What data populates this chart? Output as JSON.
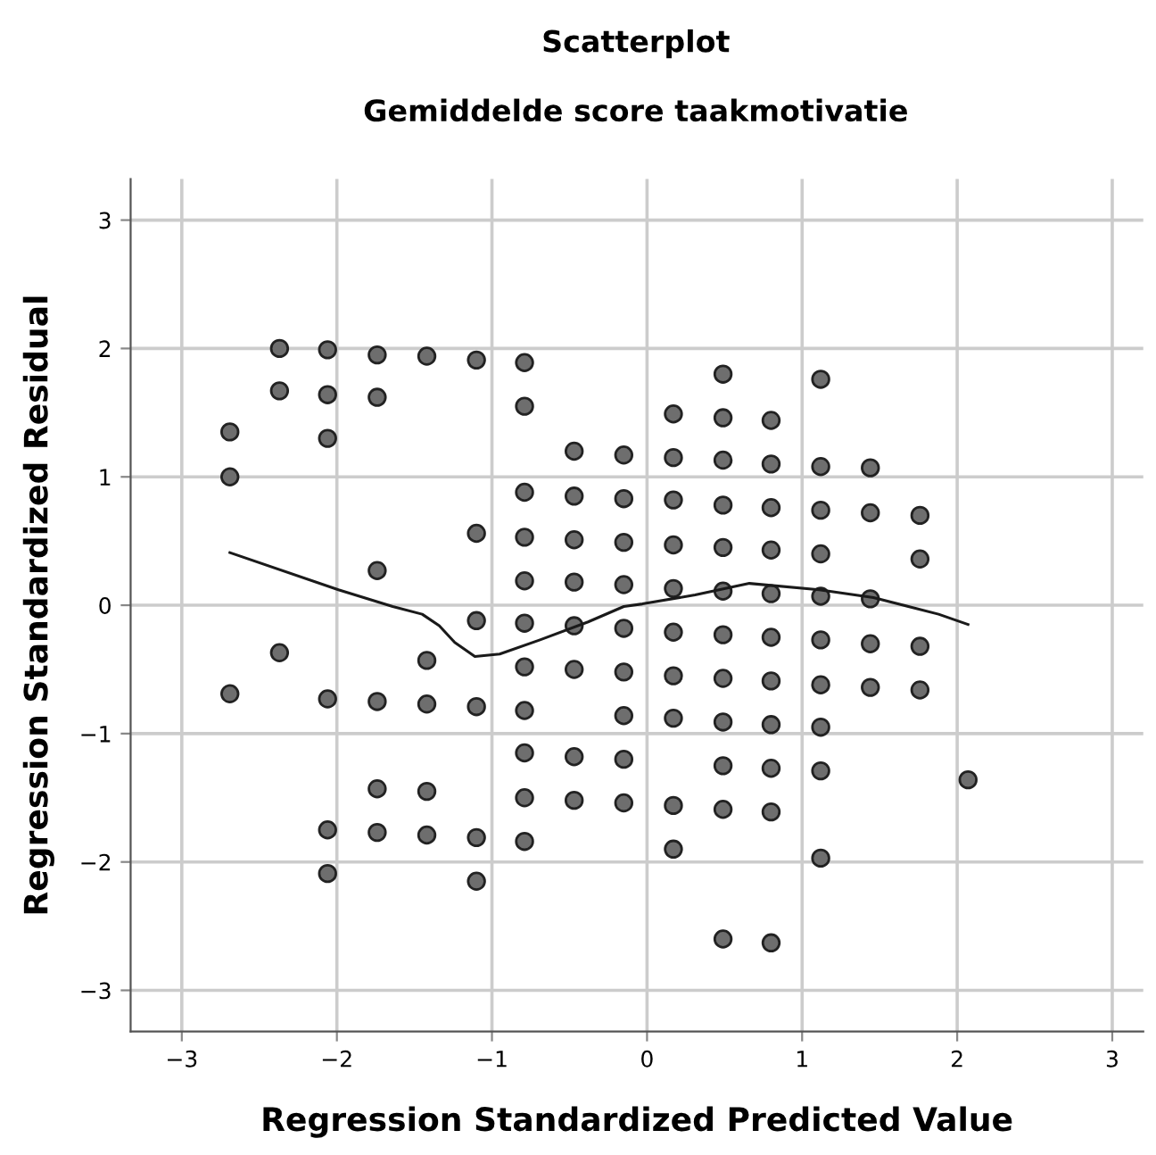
{
  "chart_data": {
    "type": "scatter",
    "title": "Scatterplot",
    "subtitle": "Gemiddelde score taakmotivatie",
    "xlabel": "Regression Standardized Predicted Value",
    "ylabel": "Regression Standardized Residual",
    "xlim": [
      -3.33,
      3.2
    ],
    "ylim": [
      -3.32,
      3.32
    ],
    "xticks": [
      -3,
      -2,
      -1,
      0,
      1,
      2,
      3
    ],
    "yticks": [
      -3,
      -2,
      -1,
      0,
      1,
      2,
      3
    ],
    "grid": true,
    "marker": "circle",
    "series": [
      {
        "color": "#6e6e6e",
        "x": [
          -2.69,
          -2.69,
          -2.69,
          -2.37,
          -2.37,
          -2.37,
          -2.06,
          -2.06,
          -2.06,
          -2.06,
          -2.06,
          -2.06,
          -1.74,
          -1.74,
          -1.74,
          -1.74,
          -1.74,
          -1.74,
          -1.42,
          -1.42,
          -1.42,
          -1.42,
          -1.42,
          -1.1,
          -1.1,
          -1.1,
          -1.1,
          -1.1,
          -1.1,
          -0.79,
          -0.79,
          -0.79,
          -0.79,
          -0.79,
          -0.79,
          -0.79,
          -0.79,
          -0.79,
          -0.79,
          -0.79,
          -0.47,
          -0.47,
          -0.47,
          -0.47,
          -0.47,
          -0.47,
          -0.47,
          -0.47,
          -0.15,
          -0.15,
          -0.15,
          -0.15,
          -0.15,
          -0.15,
          -0.15,
          -0.15,
          -0.15,
          0.17,
          0.17,
          0.17,
          0.17,
          0.17,
          0.17,
          0.17,
          0.17,
          0.17,
          0.17,
          0.49,
          0.49,
          0.49,
          0.49,
          0.49,
          0.49,
          0.49,
          0.49,
          0.49,
          0.49,
          0.49,
          0.49,
          0.8,
          0.8,
          0.8,
          0.8,
          0.8,
          0.8,
          0.8,
          0.8,
          0.8,
          0.8,
          0.8,
          1.12,
          1.12,
          1.12,
          1.12,
          1.12,
          1.12,
          1.12,
          1.12,
          1.12,
          1.12,
          1.44,
          1.44,
          1.44,
          1.44,
          1.44,
          1.76,
          1.76,
          1.76,
          1.76,
          2.07
        ],
        "values": [
          1.35,
          1.0,
          -0.69,
          2.0,
          1.67,
          -0.37,
          1.99,
          1.64,
          1.3,
          -0.73,
          -1.75,
          -2.09,
          1.95,
          1.62,
          0.27,
          -0.75,
          -1.43,
          -1.77,
          1.94,
          -0.43,
          -0.77,
          -1.45,
          -1.79,
          1.91,
          0.56,
          -0.12,
          -0.79,
          -1.81,
          -2.15,
          1.89,
          1.55,
          0.88,
          0.53,
          0.19,
          -0.14,
          -0.48,
          -0.82,
          -1.15,
          -1.5,
          -1.84,
          1.2,
          0.85,
          0.51,
          0.18,
          -0.16,
          -0.5,
          -1.18,
          -1.52,
          1.17,
          0.83,
          0.49,
          0.16,
          -0.18,
          -0.52,
          -0.86,
          -1.2,
          -1.54,
          1.49,
          1.15,
          0.82,
          0.47,
          0.13,
          -0.21,
          -0.55,
          -0.88,
          -1.56,
          -1.9,
          1.8,
          1.46,
          1.13,
          0.78,
          0.45,
          0.11,
          -0.23,
          -0.57,
          -0.91,
          -1.25,
          -1.59,
          -2.6,
          1.44,
          1.1,
          0.76,
          0.43,
          0.09,
          -0.25,
          -0.59,
          -0.93,
          -1.27,
          -1.61,
          -2.63,
          1.76,
          1.08,
          0.74,
          0.4,
          0.07,
          -0.27,
          -0.62,
          -0.95,
          -1.29,
          -1.97,
          1.07,
          0.72,
          0.05,
          -0.3,
          -0.64,
          0.7,
          0.36,
          -0.32,
          -0.66,
          -1.36
        ]
      },
      {
        "type": "line",
        "color": "#1a1a1a",
        "marker": "none",
        "line_style": "solid",
        "x": [
          -2.69,
          -1.99,
          -1.64,
          -1.45,
          -1.34,
          -1.24,
          -1.11,
          -0.95,
          -0.69,
          -0.38,
          -0.15,
          -0.03,
          0.31,
          0.66,
          1.11,
          1.46,
          1.88,
          2.07
        ],
        "values": [
          0.41,
          0.12,
          -0.01,
          -0.07,
          -0.16,
          -0.29,
          -0.4,
          -0.38,
          -0.27,
          -0.13,
          -0.01,
          0.01,
          0.08,
          0.17,
          0.12,
          0.06,
          -0.07,
          -0.15
        ]
      }
    ]
  }
}
